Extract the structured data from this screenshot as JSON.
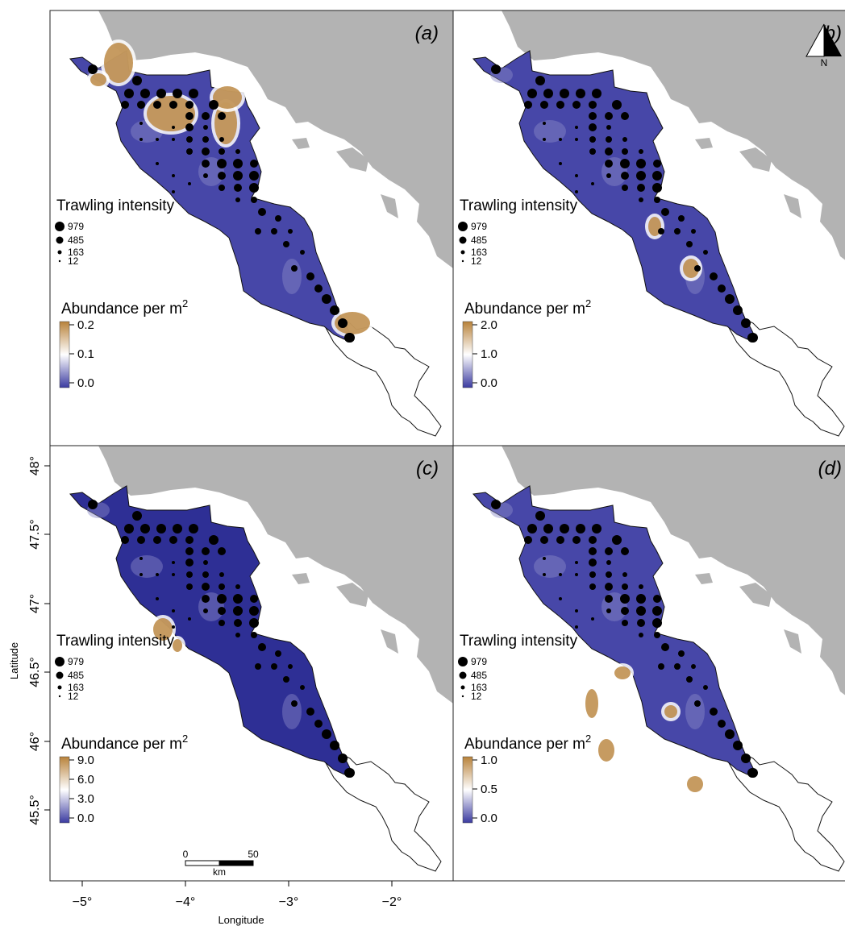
{
  "colors": {
    "land": "#b3b3b3",
    "water": "#ffffff",
    "high": "#b8823a",
    "mid": "#ffffff",
    "low": "#3b3ba0",
    "frame": "#222222",
    "points": "#000000"
  },
  "trawling": {
    "title": "Trawling intensity",
    "sizes": [
      "979",
      "485",
      "163",
      "12"
    ]
  },
  "abundance_title": "Abundance per m",
  "abundance_sup": "2",
  "north_label": "N",
  "scale_bar": {
    "left": "0",
    "right": "50",
    "unit": "km"
  },
  "axes": {
    "xlabel": "Longitude",
    "ylabel": "Latitude",
    "xticks": [
      "−5°",
      "−4°",
      "−3°",
      "−2°"
    ],
    "yticks": [
      "48°",
      "47.5°",
      "47°",
      "46.5°",
      "46°",
      "45.5°"
    ]
  },
  "panels": [
    {
      "label": "(a)",
      "ticks": [
        "0.2",
        "0.1",
        "0.0"
      ]
    },
    {
      "label": "(b)",
      "ticks": [
        "2.0",
        "1.0",
        "0.0"
      ]
    },
    {
      "label": "(c)",
      "ticks": [
        "9.0",
        "6.0",
        "3.0",
        "0.0"
      ]
    },
    {
      "label": "(d)",
      "ticks": [
        "1.0",
        "0.5",
        "0.0"
      ]
    }
  ]
}
